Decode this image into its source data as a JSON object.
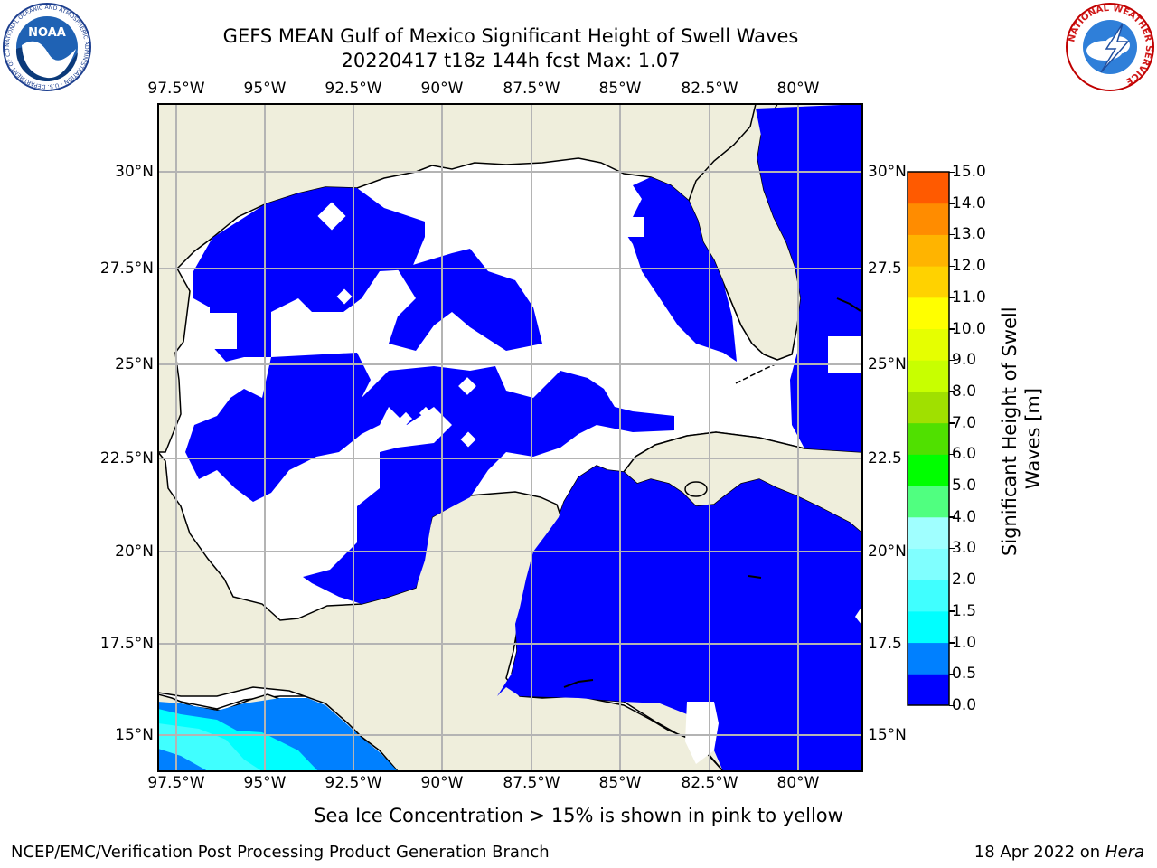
{
  "title": {
    "line1": "GEFS MEAN Gulf of Mexico Significant Height of Swell Waves",
    "line2": "20220417 t18z 144h fcst   Max: 1.07"
  },
  "map": {
    "lon_labels": [
      "97.5°W",
      "95°W",
      "92.5°W",
      "90°W",
      "87.5°W",
      "85°W",
      "82.5°W",
      "80°W"
    ],
    "lat_labels_left": [
      "30°N",
      "27.5°N",
      "25°N",
      "22.5°N",
      "20°N",
      "17.5°N",
      "15°N"
    ],
    "lat_labels_right": [
      "30°N",
      "27.5",
      "25°N",
      "22.5",
      "20°N",
      "17.5",
      "15°N"
    ],
    "colors": {
      "land": "#efeedc",
      "ocean_low": "#0000ff",
      "ocean_mid": "#0080ff",
      "ocean_cyan": "#00ffff",
      "grid": "#b4b4b4"
    }
  },
  "colorbar": {
    "title_line1": "Significant Height of Swell",
    "title_line2": "Waves [m]",
    "ticks": [
      "0.0",
      "0.5",
      "1.0",
      "1.5",
      "2.0",
      "3.0",
      "4.0",
      "5.0",
      "6.0",
      "7.0",
      "8.0",
      "9.0",
      "10.0",
      "11.0",
      "12.0",
      "13.0",
      "14.0",
      "15.0"
    ],
    "colors": [
      "#0000ff",
      "#0080ff",
      "#00ffff",
      "#40ffff",
      "#80ffff",
      "#a0ffff",
      "#50ff80",
      "#00ff00",
      "#50e000",
      "#a0e000",
      "#c8ff00",
      "#e6ff00",
      "#ffff00",
      "#ffd200",
      "#ffb400",
      "#ff8c00",
      "#ff5a00",
      "#ff2800",
      "#ff0000"
    ]
  },
  "note": "Sea Ice Concentration > 15% is shown in pink to yellow",
  "footer": {
    "left": "NCEP/EMC/Verification Post Processing Product Generation Branch",
    "right_date": "18 Apr 2022 on ",
    "right_machine": "Hera"
  },
  "logos": {
    "noaa": {
      "text": "NOAA",
      "ring_text": "NATIONAL OCEANIC AND ATMOSPHERIC ADMINISTRATION · U.S. DEPARTMENT OF COMMERCE"
    },
    "nws": {
      "ring_text": "NATIONAL WEATHER SERVICE"
    }
  }
}
